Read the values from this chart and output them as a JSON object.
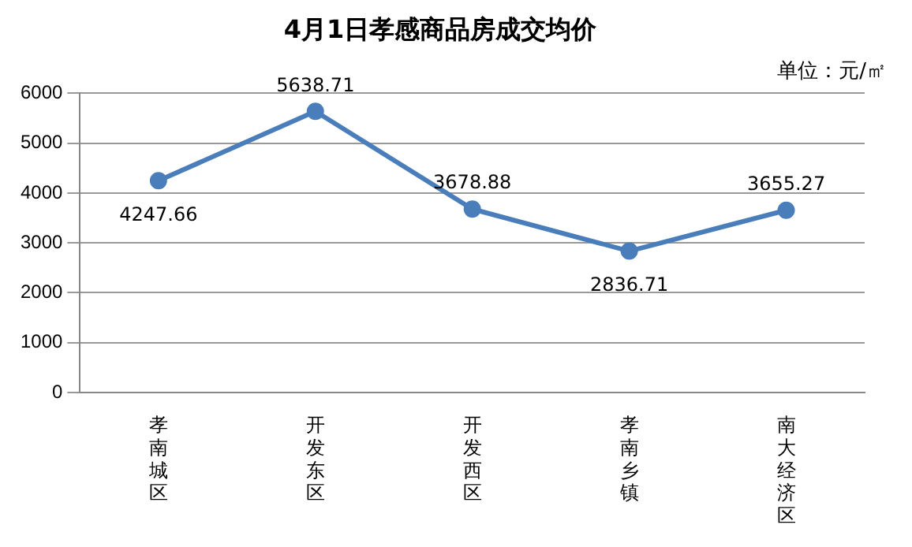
{
  "chart_data": {
    "type": "line",
    "title": "4月1日孝感商品房成交均价",
    "annotations": [
      "单位：元/㎡"
    ],
    "categories": [
      "孝南城区",
      "开发东区",
      "开发西区",
      "孝南乡镇",
      "南大经济区"
    ],
    "series": [
      {
        "color": "#4a7ebb",
        "values": [
          4247.66,
          5638.71,
          3678.88,
          2836.71,
          3655.27
        ]
      }
    ],
    "ylim": [
      0,
      6000
    ],
    "yticks": [
      0,
      1000,
      2000,
      3000,
      4000,
      5000,
      6000
    ],
    "grid": "y",
    "legend": false,
    "marker": "circle",
    "line_style": "solid",
    "data_labels": true
  }
}
